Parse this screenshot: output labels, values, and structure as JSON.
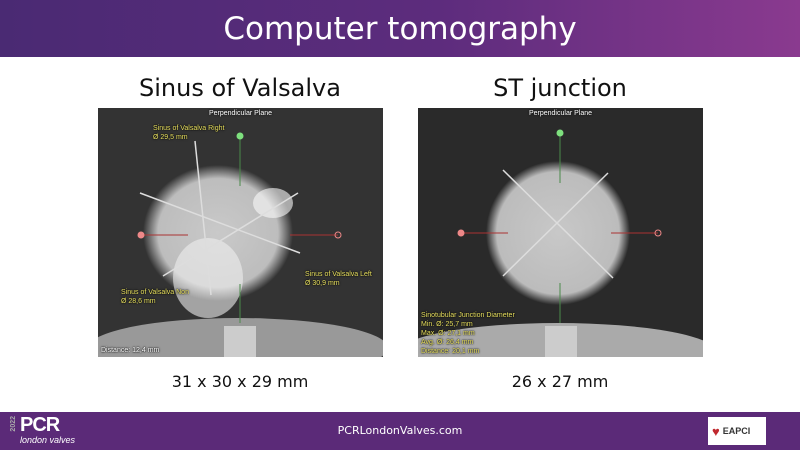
{
  "header": {
    "title": "Computer tomography"
  },
  "panels": [
    {
      "title": "Sinus of Valsalva",
      "plane": "Perpendicular Plane",
      "labels": {
        "right": "Sinus of Valsalva Right",
        "right_val": "Ø 29,5 mm",
        "left": "Sinus of Valsalva Left",
        "left_val": "Ø 30,9 mm",
        "non": "Sinus of Valsalva Non",
        "non_val": "Ø 28,6 mm",
        "distance": "Distance: 12,4 mm"
      },
      "dimensions": "31 x 30 x 29 mm"
    },
    {
      "title": "ST junction",
      "plane": "Perpendicular Plane",
      "labels": {
        "title": "Sinotubular Junction Diameter",
        "min": "Min. Ø: 25,7 mm",
        "max": "Max. Ø: 27,1 mm",
        "avg": "Avg. Ø: 26,4 mm",
        "distance": "Distance: 20,1 mm"
      },
      "dimensions": "26 x 27 mm"
    }
  ],
  "footer": {
    "year": "2022",
    "logo_pcr": "PCR",
    "logo_sub": "london valves",
    "url": "PCRLondonValves.com",
    "partner": "EAPCI"
  },
  "colors": {
    "header": "#5d2c7d",
    "footer": "#5b2a78",
    "overlay_text": "#e8e060"
  }
}
